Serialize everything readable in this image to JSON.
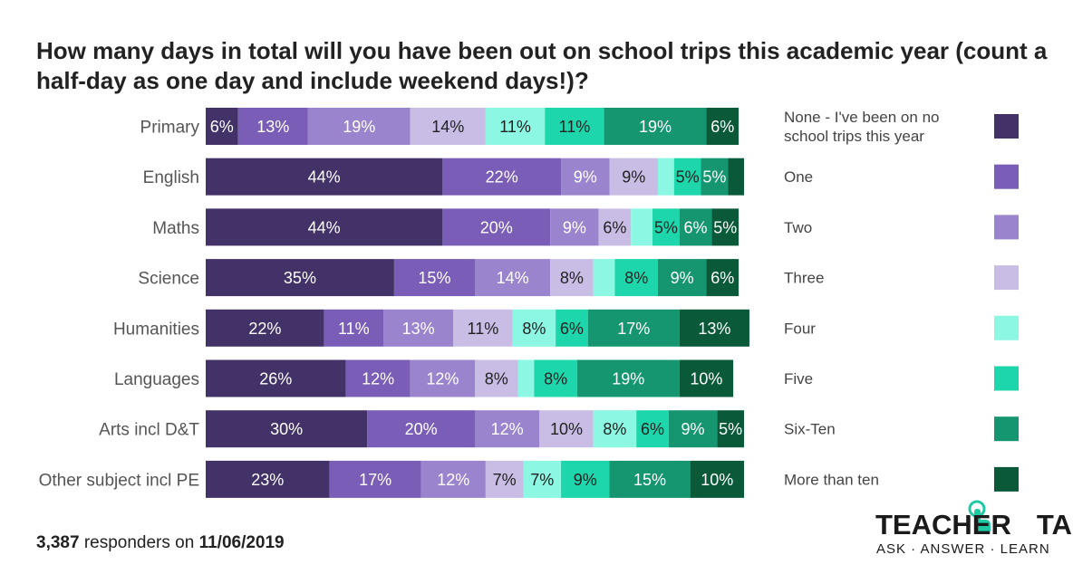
{
  "title": "How many days in total will you have been out on school trips this academic year (count a half-day as one day and include weekend days!)?",
  "footer": {
    "count": "3,387",
    "middle": " responders on ",
    "date": "11/06/2019"
  },
  "logo": {
    "word1": "TEACHER",
    "word2": "TAPP",
    "tagline": "ASK · ANSWER · LEARN",
    "accent": "#1ec9a4"
  },
  "chart_data": {
    "type": "bar",
    "orientation": "horizontal-stacked-100",
    "title": "How many days in total will you have been out on school trips this academic year (count a half-day as one day and include weekend days!)?",
    "categories": [
      "Primary",
      "English",
      "Maths",
      "Science",
      "Humanities",
      "Languages",
      "Arts incl D&T",
      "Other subject incl PE"
    ],
    "series": [
      {
        "name": "None - I've been on no school trips this year",
        "color": "#433267",
        "text_color": "#ffffff",
        "values": [
          6,
          44,
          44,
          35,
          22,
          26,
          30,
          23
        ],
        "labels": [
          "6%",
          "44%",
          "44%",
          "35%",
          "22%",
          "26%",
          "30%",
          "23%"
        ]
      },
      {
        "name": "One",
        "color": "#7a5db6",
        "text_color": "#ffffff",
        "values": [
          13,
          22,
          20,
          15,
          11,
          12,
          20,
          17
        ],
        "labels": [
          "13%",
          "22%",
          "20%",
          "15%",
          "11%",
          "12%",
          "20%",
          "17%"
        ]
      },
      {
        "name": "Two",
        "color": "#9a84ce",
        "text_color": "#ffffff",
        "values": [
          19,
          9,
          9,
          14,
          13,
          12,
          12,
          12
        ],
        "labels": [
          "19%",
          "9%",
          "9%",
          "14%",
          "13%",
          "12%",
          "12%",
          "12%"
        ]
      },
      {
        "name": "Three",
        "color": "#c9bde6",
        "text_color": "#222222",
        "values": [
          14,
          9,
          6,
          8,
          11,
          8,
          10,
          7
        ],
        "labels": [
          "14%",
          "9%",
          "6%",
          "8%",
          "11%",
          "8%",
          "10%",
          "7%"
        ]
      },
      {
        "name": "Four",
        "color": "#8cf7e2",
        "text_color": "#222222",
        "values": [
          11,
          3,
          4,
          4,
          8,
          3,
          8,
          7
        ],
        "labels": [
          "11%",
          "",
          "",
          "",
          "8%",
          "",
          "8%",
          "7%"
        ]
      },
      {
        "name": "Five",
        "color": "#1ed6ab",
        "text_color": "#222222",
        "values": [
          11,
          5,
          5,
          8,
          6,
          8,
          6,
          9
        ],
        "labels": [
          "11%",
          "5%",
          "5%",
          "8%",
          "6%",
          "8%",
          "6%",
          "9%"
        ]
      },
      {
        "name": "Six-Ten",
        "color": "#169670",
        "text_color": "#ffffff",
        "values": [
          19,
          5,
          6,
          9,
          17,
          19,
          9,
          15
        ],
        "labels": [
          "19%",
          "5%",
          "6%",
          "9%",
          "17%",
          "19%",
          "9%",
          "15%"
        ]
      },
      {
        "name": "More than ten",
        "color": "#0a5a3a",
        "text_color": "#ffffff",
        "values": [
          6,
          3,
          5,
          6,
          13,
          10,
          5,
          10
        ],
        "labels": [
          "6%",
          "",
          "5%",
          "6%",
          "13%",
          "10%",
          "5%",
          "10%"
        ]
      }
    ],
    "xlim": [
      0,
      100
    ],
    "legend_position": "right"
  }
}
